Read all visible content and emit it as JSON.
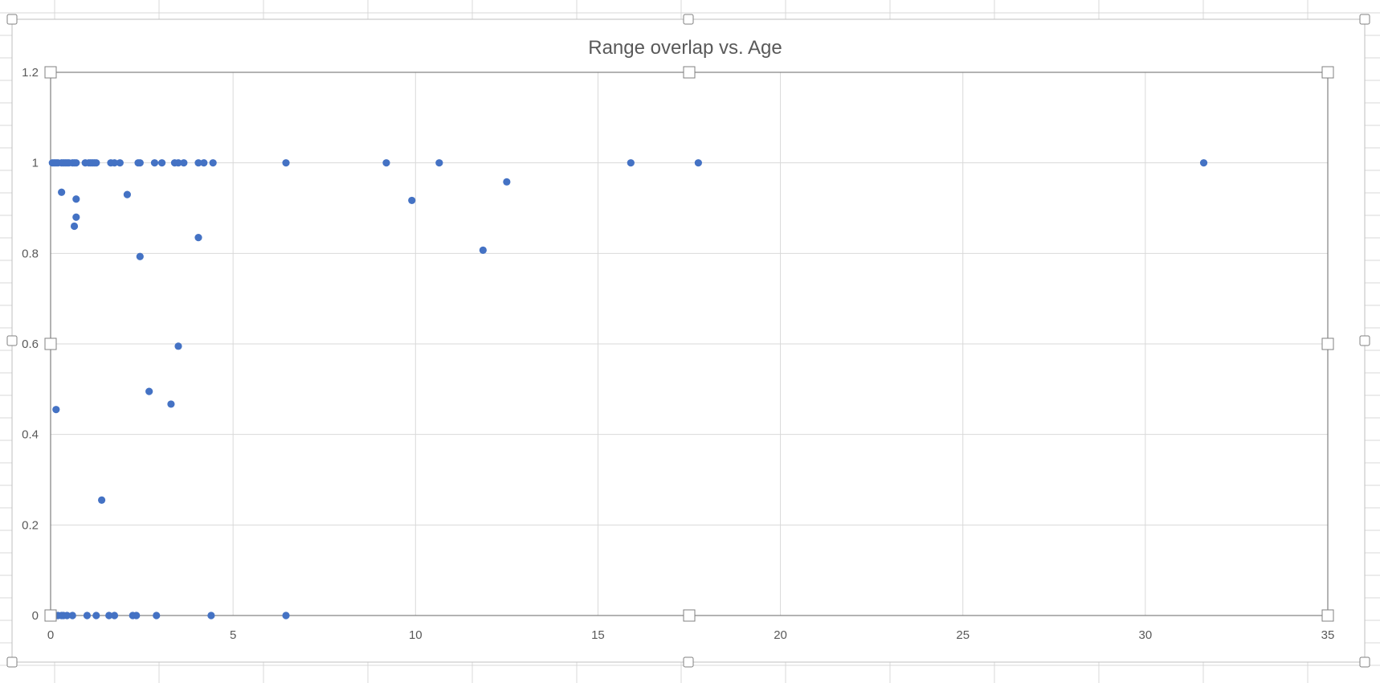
{
  "chart_data": {
    "type": "scatter",
    "title": "Range overlap vs. Age",
    "xlabel": "",
    "ylabel": "",
    "xlim": [
      0,
      35
    ],
    "ylim": [
      0,
      1.2
    ],
    "x_ticks": [
      "0",
      "5",
      "10",
      "15",
      "20",
      "25",
      "30",
      "35"
    ],
    "y_ticks": [
      "0",
      "0.2",
      "0.4",
      "0.6",
      "0.8",
      "1",
      "1.2"
    ],
    "grid": true,
    "legend": "none",
    "series": [
      {
        "color": "#4472c4",
        "points": [
          [
            0.05,
            1.0
          ],
          [
            0.1,
            1.0
          ],
          [
            0.15,
            1.0
          ],
          [
            0.2,
            1.0
          ],
          [
            0.3,
            1.0
          ],
          [
            0.35,
            1.0
          ],
          [
            0.4,
            1.0
          ],
          [
            0.45,
            1.0
          ],
          [
            0.5,
            1.0
          ],
          [
            0.6,
            1.0
          ],
          [
            0.65,
            1.0
          ],
          [
            0.7,
            1.0
          ],
          [
            0.95,
            1.0
          ],
          [
            1.05,
            1.0
          ],
          [
            1.1,
            1.0
          ],
          [
            1.15,
            1.0
          ],
          [
            1.2,
            1.0
          ],
          [
            1.25,
            1.0
          ],
          [
            1.65,
            1.0
          ],
          [
            1.75,
            1.0
          ],
          [
            1.9,
            1.0
          ],
          [
            2.4,
            1.0
          ],
          [
            2.45,
            1.0
          ],
          [
            2.85,
            1.0
          ],
          [
            3.05,
            1.0
          ],
          [
            3.4,
            1.0
          ],
          [
            3.5,
            1.0
          ],
          [
            3.65,
            1.0
          ],
          [
            4.05,
            1.0
          ],
          [
            4.2,
            1.0
          ],
          [
            4.45,
            1.0
          ],
          [
            6.45,
            1.0
          ],
          [
            9.2,
            1.0
          ],
          [
            10.65,
            1.0
          ],
          [
            15.9,
            1.0
          ],
          [
            17.75,
            1.0
          ],
          [
            31.6,
            1.0
          ],
          [
            0.3,
            0.935
          ],
          [
            0.7,
            0.92
          ],
          [
            0.7,
            0.88
          ],
          [
            0.65,
            0.86
          ],
          [
            2.1,
            0.93
          ],
          [
            9.9,
            0.917
          ],
          [
            12.5,
            0.958
          ],
          [
            4.05,
            0.835
          ],
          [
            2.45,
            0.793
          ],
          [
            11.85,
            0.807
          ],
          [
            3.5,
            0.595
          ],
          [
            2.7,
            0.495
          ],
          [
            3.3,
            0.467
          ],
          [
            0.15,
            0.455
          ],
          [
            1.4,
            0.255
          ],
          [
            0.05,
            0.0
          ],
          [
            0.1,
            0.0
          ],
          [
            0.2,
            0.0
          ],
          [
            0.3,
            0.0
          ],
          [
            0.35,
            0.0
          ],
          [
            0.45,
            0.0
          ],
          [
            0.6,
            0.0
          ],
          [
            1.0,
            0.0
          ],
          [
            1.25,
            0.0
          ],
          [
            1.6,
            0.0
          ],
          [
            1.75,
            0.0
          ],
          [
            2.25,
            0.0
          ],
          [
            2.35,
            0.0
          ],
          [
            2.9,
            0.0
          ],
          [
            4.4,
            0.0
          ],
          [
            6.45,
            0.0
          ]
        ]
      }
    ]
  }
}
